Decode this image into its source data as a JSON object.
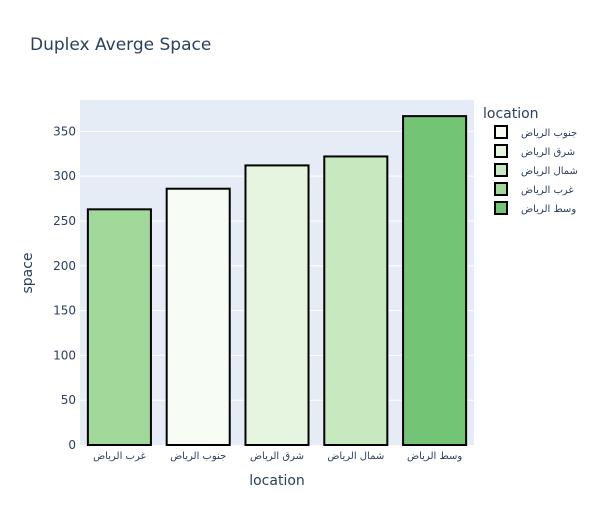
{
  "chart_data": {
    "type": "bar",
    "title": "Duplex Averge Space",
    "xlabel": "location",
    "ylabel": "space",
    "ylim": [
      0,
      385
    ],
    "yticks": [
      0,
      50,
      100,
      150,
      200,
      250,
      300,
      350
    ],
    "grid": true,
    "legend": {
      "title": "location",
      "placement": "right",
      "entries": [
        {
          "name": "جنوب الرياض",
          "color": "#f7fcf5"
        },
        {
          "name": "شرق الرياض",
          "color": "#e5f5e0"
        },
        {
          "name": "شمال الرياض",
          "color": "#c7e9c0"
        },
        {
          "name": "غرب الرياض",
          "color": "#a1d99b"
        },
        {
          "name": "وسط الرياض",
          "color": "#74c476"
        }
      ]
    },
    "categories": [
      "غرب الرياض",
      "جنوب الرياض",
      "شرق الرياض",
      "شمال الرياض",
      "وسط الرياض"
    ],
    "values": [
      263,
      286,
      312,
      322,
      367
    ],
    "colors": [
      "#a1d99b",
      "#f7fcf5",
      "#e5f5e0",
      "#c7e9c0",
      "#74c476"
    ],
    "plot_bg": "#e5ecf6",
    "text_color": "#2a3f5f"
  }
}
